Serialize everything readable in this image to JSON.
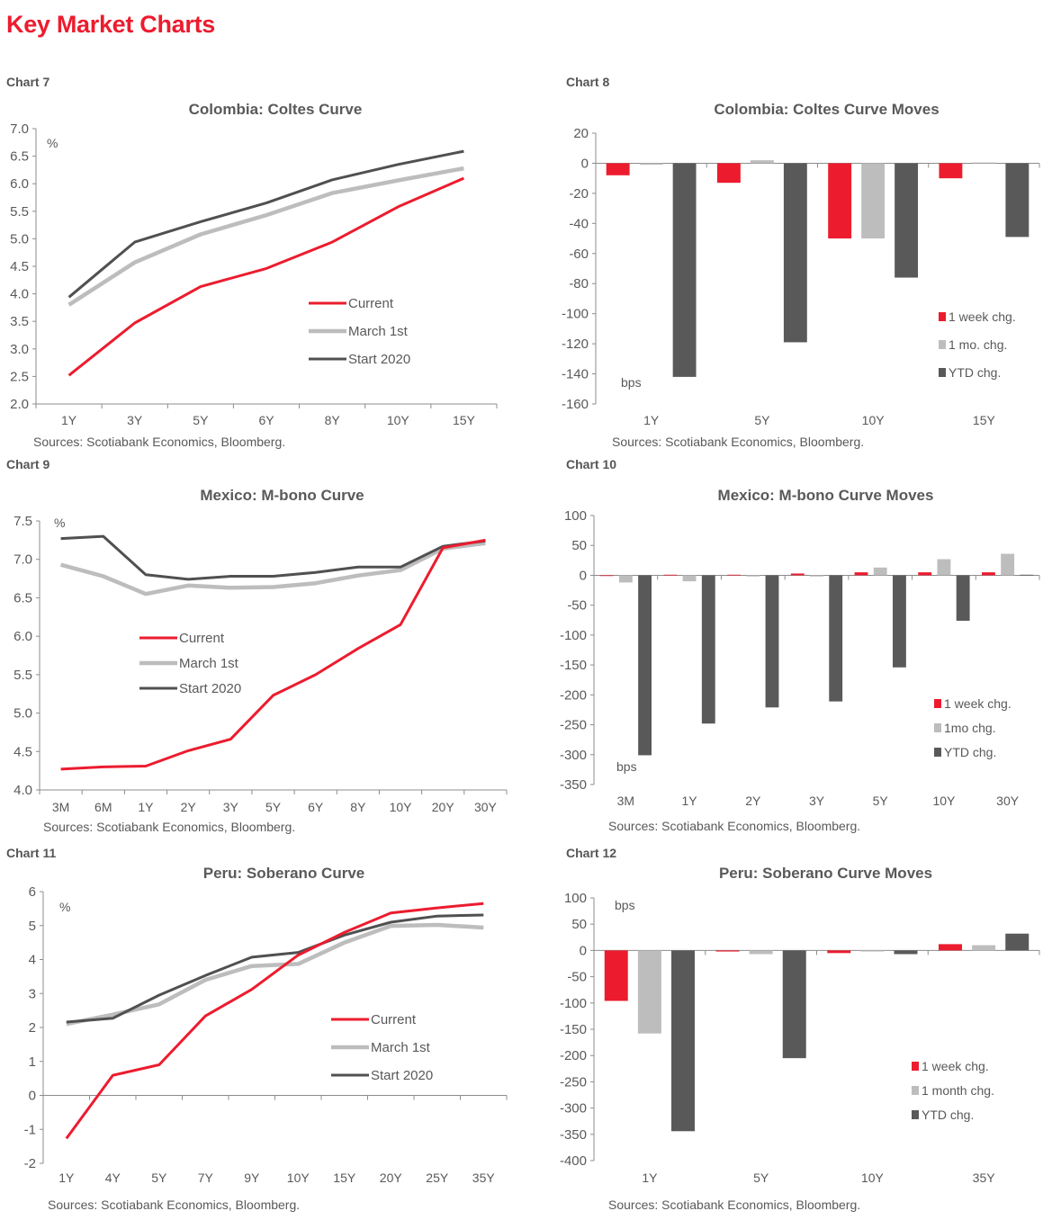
{
  "page": {
    "title": "Key Market Charts"
  },
  "source_note": "Sources: Scotiabank Economics, Bloomberg.",
  "colors": {
    "current": "#ec1c2e",
    "march": "#bdbdbd",
    "start": "#505050",
    "week": "#ec1c2e",
    "month": "#bdbdbd",
    "ytd": "#595959",
    "title": "#ec1c2e"
  },
  "labels": [
    "Chart 7",
    "Chart 8",
    "Chart 9",
    "Chart 10",
    "Chart 11",
    "Chart 12"
  ],
  "chart_data": [
    {
      "type": "line",
      "label": "Chart 7",
      "title": "Colombia: Coltes Curve",
      "unit": "%",
      "categories": [
        "1Y",
        "3Y",
        "5Y",
        "6Y",
        "8Y",
        "10Y",
        "15Y"
      ],
      "ylim": [
        2.0,
        7.0
      ],
      "yticks": [
        "2.0",
        "2.5",
        "3.0",
        "3.5",
        "4.0",
        "4.5",
        "5.0",
        "5.5",
        "6.0",
        "6.5",
        "7.0"
      ],
      "ystep": 0.5,
      "grid": false,
      "legend_position": "center-right",
      "series": [
        {
          "name": "Current",
          "values": [
            2.52,
            3.47,
            4.13,
            4.46,
            4.94,
            5.58,
            6.1
          ]
        },
        {
          "name": "March 1st",
          "values": [
            3.8,
            4.57,
            5.08,
            5.43,
            5.83,
            6.06,
            6.28
          ]
        },
        {
          "name": "Start 2020",
          "values": [
            3.94,
            4.94,
            5.31,
            5.65,
            6.07,
            6.35,
            6.59
          ]
        }
      ],
      "source": "Sources: Scotiabank Economics, Bloomberg."
    },
    {
      "type": "bar",
      "label": "Chart 8",
      "title": "Colombia: Coltes Curve Moves",
      "unit": "bps",
      "categories": [
        "1Y",
        "5Y",
        "10Y",
        "15Y"
      ],
      "ylim": [
        -160,
        20
      ],
      "yticks": [
        "-160",
        "-140",
        "-120",
        "-100",
        "-80",
        "-60",
        "-40",
        "-20",
        "0",
        "20"
      ],
      "ystep": 20,
      "grid": false,
      "legend_position": "bottom-right",
      "series": [
        {
          "name": "1 week chg.",
          "values": [
            -8,
            -13,
            -50,
            -10
          ]
        },
        {
          "name": "1 mo. chg.",
          "values": [
            -1,
            2,
            -50,
            0.5
          ]
        },
        {
          "name": "YTD chg.",
          "values": [
            -142,
            -119,
            -76,
            -49
          ]
        }
      ],
      "source": "Sources: Scotiabank Economics, Bloomberg."
    },
    {
      "type": "line",
      "label": "Chart 9",
      "title": "Mexico: M-bono Curve",
      "unit": "%",
      "categories": [
        "3M",
        "6M",
        "1Y",
        "2Y",
        "3Y",
        "5Y",
        "6Y",
        "8Y",
        "10Y",
        "20Y",
        "30Y"
      ],
      "ylim": [
        4.0,
        7.5
      ],
      "yticks": [
        "4.0",
        "4.5",
        "5.0",
        "5.5",
        "6.0",
        "6.5",
        "7.0",
        "7.5"
      ],
      "ystep": 0.5,
      "grid": false,
      "legend_position": "center-left",
      "series": [
        {
          "name": "Current",
          "values": [
            4.27,
            4.3,
            4.31,
            4.51,
            4.66,
            5.23,
            5.5,
            5.84,
            6.15,
            7.15,
            7.25
          ]
        },
        {
          "name": "March 1st",
          "values": [
            6.93,
            6.78,
            6.55,
            6.66,
            6.63,
            6.64,
            6.69,
            6.79,
            6.86,
            7.14,
            7.21
          ]
        },
        {
          "name": "Start 2020",
          "values": [
            7.27,
            7.3,
            6.8,
            6.74,
            6.78,
            6.78,
            6.83,
            6.9,
            6.9,
            7.17,
            7.24
          ]
        }
      ],
      "source": "Sources: Scotiabank Economics, Bloomberg."
    },
    {
      "type": "bar",
      "label": "Chart 10",
      "title": "Mexico: M-bono Curve Moves",
      "unit": "bps",
      "categories": [
        "3M",
        "1Y",
        "2Y",
        "3Y",
        "5Y",
        "10Y",
        "30Y"
      ],
      "ylim": [
        -350,
        100
      ],
      "yticks": [
        "-350",
        "-300",
        "-250",
        "-200",
        "-150",
        "-100",
        "-50",
        "0",
        "50",
        "100"
      ],
      "ystep": 50,
      "grid": false,
      "legend_position": "bottom-right",
      "series": [
        {
          "name": "1 week chg.",
          "values": [
            0,
            1,
            1,
            3,
            5,
            5,
            5
          ]
        },
        {
          "name": "1mo chg.",
          "values": [
            -12,
            -10,
            -2,
            -2,
            13,
            27,
            36
          ]
        },
        {
          "name": "YTD chg.",
          "values": [
            -301,
            -248,
            -221,
            -211,
            -154,
            -76,
            1
          ]
        }
      ],
      "source": "Sources: Scotiabank Economics, Bloomberg."
    },
    {
      "type": "line",
      "label": "Chart 11",
      "title": "Peru: Soberano Curve",
      "unit": "%",
      "categories": [
        "1Y",
        "4Y",
        "5Y",
        "7Y",
        "9Y",
        "10Y",
        "15Y",
        "20Y",
        "25Y",
        "35Y"
      ],
      "ylim": [
        -2,
        6
      ],
      "yticks": [
        "-2",
        "-1",
        "0",
        "1",
        "2",
        "3",
        "4",
        "5",
        "6"
      ],
      "ystep": 1,
      "grid": false,
      "legend_position": "center-right",
      "series": [
        {
          "name": "Current",
          "values": [
            -1.27,
            0.59,
            0.9,
            2.34,
            3.12,
            4.13,
            4.8,
            5.37,
            5.52,
            5.65
          ]
        },
        {
          "name": "March 1st",
          "values": [
            2.1,
            2.38,
            2.68,
            3.4,
            3.81,
            3.87,
            4.5,
            4.99,
            5.02,
            4.94
          ]
        },
        {
          "name": "Start 2020",
          "values": [
            2.16,
            2.27,
            2.95,
            3.53,
            4.07,
            4.21,
            4.72,
            5.1,
            5.28,
            5.31
          ]
        }
      ],
      "source": "Sources: Scotiabank Economics, Bloomberg."
    },
    {
      "type": "bar",
      "label": "Chart 12",
      "title": "Peru: Soberano Curve Moves",
      "unit": "bps",
      "categories": [
        "1Y",
        "5Y",
        "10Y",
        "35Y"
      ],
      "ylim": [
        -400,
        100
      ],
      "yticks": [
        "-400",
        "-350",
        "-300",
        "-250",
        "-200",
        "-150",
        "-100",
        "-50",
        "0",
        "50",
        "100"
      ],
      "ystep": 50,
      "grid": false,
      "legend_position": "bottom-right",
      "series": [
        {
          "name": "1 week chg.",
          "values": [
            -96,
            -2,
            -5,
            12
          ]
        },
        {
          "name": "1 month chg.",
          "values": [
            -158,
            -7,
            -2,
            10
          ]
        },
        {
          "name": "YTD chg.",
          "values": [
            -344,
            -205,
            -7,
            32
          ]
        }
      ],
      "source": "Sources: Scotiabank Economics, Bloomberg."
    }
  ]
}
